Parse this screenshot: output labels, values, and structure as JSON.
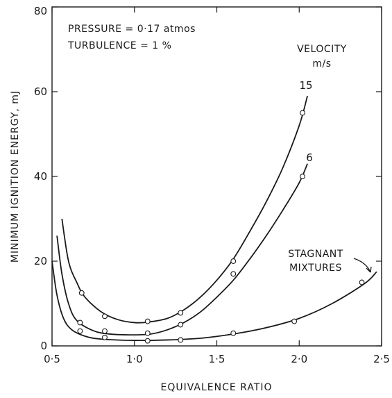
{
  "chart_data": {
    "type": "line",
    "xlabel": "EQUIVALENCE RATIO",
    "ylabel": "MINIMUM IGNITION ENERGY, mJ",
    "xlim": [
      0.5,
      2.5
    ],
    "ylim": [
      0,
      80
    ],
    "x_ticks": [
      "0·5",
      "1·0",
      "1·5",
      "2·0",
      "2·5"
    ],
    "y_ticks": [
      "0",
      "20",
      "40",
      "60",
      "80"
    ],
    "grid": false,
    "annotations": {
      "conditions_line1": "PRESSURE = 0·17 atmos",
      "conditions_line2": "TURBULENCE = 1 %",
      "legend_title_line1": "VELOCITY",
      "legend_title_line2": "m/s"
    },
    "series": [
      {
        "name": "15",
        "curve": [
          [
            0.56,
            30
          ],
          [
            0.6,
            20
          ],
          [
            0.65,
            15
          ],
          [
            0.7,
            11.5
          ],
          [
            0.8,
            8
          ],
          [
            0.9,
            6.2
          ],
          [
            1.0,
            5.5
          ],
          [
            1.08,
            5.6
          ],
          [
            1.2,
            6.5
          ],
          [
            1.3,
            8.5
          ],
          [
            1.4,
            11.5
          ],
          [
            1.5,
            15.5
          ],
          [
            1.6,
            20.5
          ],
          [
            1.7,
            27
          ],
          [
            1.8,
            34
          ],
          [
            1.9,
            42
          ],
          [
            2.0,
            52
          ],
          [
            2.05,
            59
          ]
        ],
        "points": [
          [
            0.68,
            12.5
          ],
          [
            0.82,
            7
          ],
          [
            1.08,
            5.8
          ],
          [
            1.28,
            7.8
          ],
          [
            1.6,
            20
          ],
          [
            2.02,
            55
          ]
        ]
      },
      {
        "name": "6",
        "curve": [
          [
            0.53,
            26
          ],
          [
            0.56,
            17
          ],
          [
            0.6,
            10
          ],
          [
            0.65,
            6
          ],
          [
            0.75,
            3.6
          ],
          [
            0.85,
            2.8
          ],
          [
            1.0,
            2.6
          ],
          [
            1.1,
            2.8
          ],
          [
            1.2,
            3.8
          ],
          [
            1.3,
            5.5
          ],
          [
            1.4,
            8
          ],
          [
            1.5,
            11.5
          ],
          [
            1.6,
            15.5
          ],
          [
            1.7,
            20.5
          ],
          [
            1.8,
            26
          ],
          [
            1.9,
            32
          ],
          [
            2.0,
            38.5
          ],
          [
            2.05,
            43
          ]
        ],
        "points": [
          [
            0.67,
            5.5
          ],
          [
            0.82,
            3.5
          ],
          [
            1.08,
            3
          ],
          [
            1.28,
            5
          ],
          [
            1.6,
            17
          ],
          [
            2.02,
            40
          ]
        ]
      },
      {
        "name": "STAGNANT MIXTURES",
        "curve": [
          [
            0.5,
            20
          ],
          [
            0.53,
            12
          ],
          [
            0.57,
            6.5
          ],
          [
            0.62,
            3.8
          ],
          [
            0.7,
            2.3
          ],
          [
            0.8,
            1.6
          ],
          [
            1.0,
            1.3
          ],
          [
            1.2,
            1.4
          ],
          [
            1.4,
            1.8
          ],
          [
            1.6,
            2.8
          ],
          [
            1.8,
            4.3
          ],
          [
            2.0,
            6.5
          ],
          [
            2.2,
            10
          ],
          [
            2.4,
            14.8
          ],
          [
            2.47,
            17.5
          ]
        ],
        "points": [
          [
            0.67,
            3.5
          ],
          [
            0.82,
            2
          ],
          [
            1.08,
            1.2
          ],
          [
            1.28,
            1.4
          ],
          [
            1.6,
            3
          ],
          [
            1.97,
            5.8
          ],
          [
            2.38,
            15
          ]
        ]
      }
    ],
    "series_labels": {
      "s15": "15",
      "s6": "6",
      "stagnant_line1": "STAGNANT",
      "stagnant_line2": "MIXTURES"
    }
  }
}
